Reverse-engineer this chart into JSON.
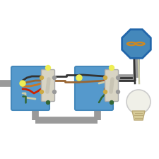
{
  "bg_color": "#ffffff",
  "wire_gray": "#9a9a9a",
  "wire_black": "#333333",
  "wire_red": "#cc2200",
  "wire_white": "#ccccaa",
  "wire_green": "#336633",
  "wire_brown": "#996633",
  "wire_orange": "#cc7722",
  "box_blue": "#5599cc",
  "box_blue_edge": "#4488bb",
  "switch_body": "#d8d4c4",
  "switch_edge": "#aaaaaa",
  "switch_lever": "#c8c4b4",
  "screw_brass": "#ccaa44",
  "screw_silver": "#999999",
  "yellow_dot": "#eeee55",
  "junction_blue": "#4488bb",
  "junction_edge": "#2266aa",
  "bulb_glass": "#f0f0e8",
  "bulb_base": "#d8cc99",
  "bulb_edge": "#cccccc",
  "filament": "#cc8822"
}
